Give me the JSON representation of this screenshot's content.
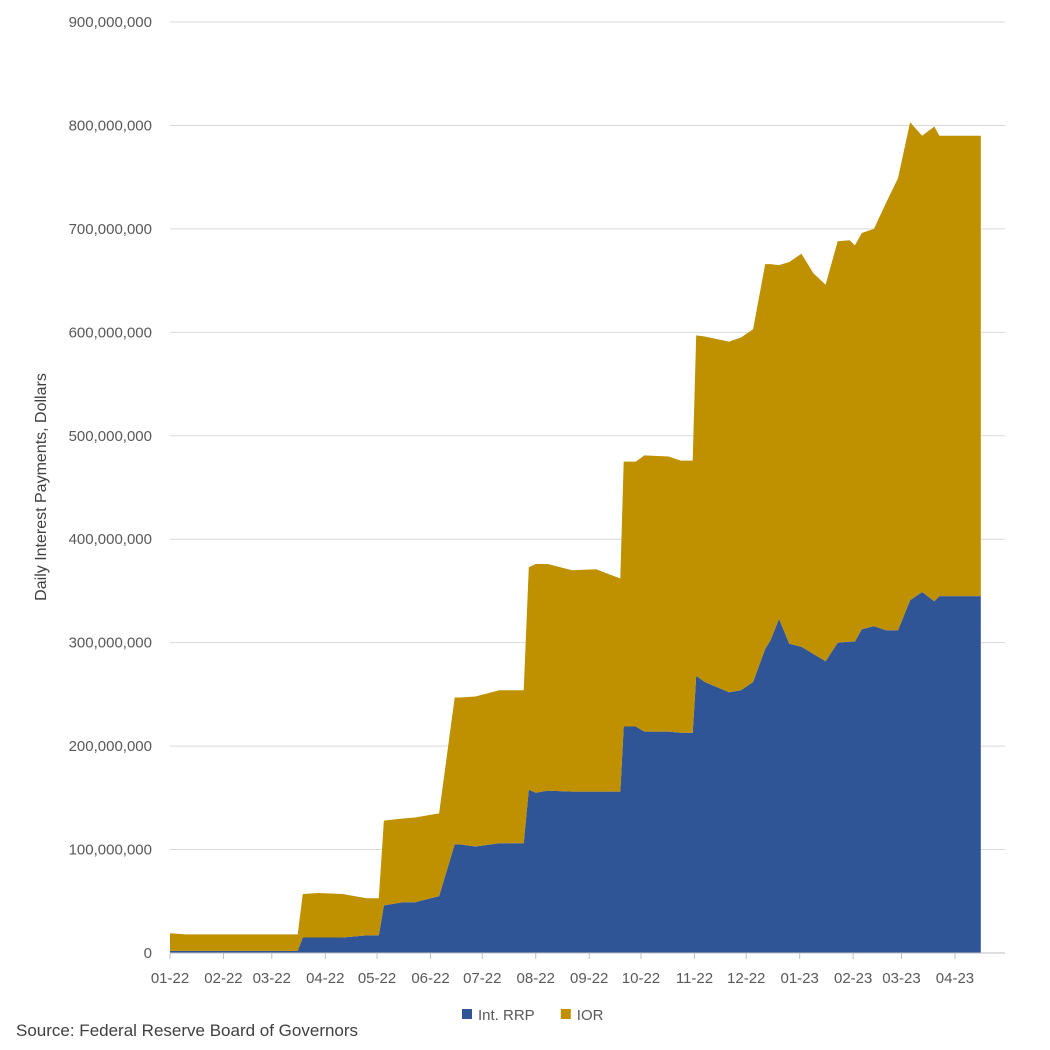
{
  "source": "Source: Federal Reserve Board of Governors",
  "chart_data": {
    "type": "area",
    "stacked": true,
    "title": "",
    "xlabel": "",
    "ylabel": "Daily Interest Payments, Dollars",
    "ylim": [
      0,
      900000000
    ],
    "yticks": [
      0,
      100000000,
      200000000,
      300000000,
      400000000,
      500000000,
      600000000,
      700000000,
      800000000,
      900000000
    ],
    "ytick_labels": [
      "0",
      "100,000,000",
      "200,000,000",
      "300,000,000",
      "400,000,000",
      "500,000,000",
      "600,000,000",
      "700,000,000",
      "800,000,000",
      "900,000,000"
    ],
    "x_tick_labels": [
      "01-22",
      "02-22",
      "03-22",
      "04-22",
      "05-22",
      "06-22",
      "07-22",
      "08-22",
      "09-22",
      "10-22",
      "11-22",
      "12-22",
      "01-23",
      "02-23",
      "03-23",
      "04-23"
    ],
    "x_start": "2022-01-01",
    "x_end": "2023-04-30",
    "grid": true,
    "legend": "bottom",
    "colors": {
      "Int. RRP": "#2f5597",
      "IOR": "#bf9000",
      "grid": "#d9d9d9",
      "axis": "#bfbfbf"
    },
    "x": [
      "2022-01-01",
      "2022-01-10",
      "2022-01-24",
      "2022-02-07",
      "2022-02-21",
      "2022-03-07",
      "2022-03-16",
      "2022-03-19",
      "2022-03-28",
      "2022-04-11",
      "2022-04-25",
      "2022-05-02",
      "2022-05-05",
      "2022-05-16",
      "2022-05-23",
      "2022-06-06",
      "2022-06-15",
      "2022-06-18",
      "2022-06-27",
      "2022-07-11",
      "2022-07-25",
      "2022-07-28",
      "2022-08-01",
      "2022-08-08",
      "2022-08-22",
      "2022-09-05",
      "2022-09-19",
      "2022-09-21",
      "2022-09-28",
      "2022-10-03",
      "2022-10-17",
      "2022-10-24",
      "2022-10-31",
      "2022-11-02",
      "2022-11-07",
      "2022-11-21",
      "2022-11-28",
      "2022-12-05",
      "2022-12-12",
      "2022-12-15",
      "2022-12-20",
      "2022-12-26",
      "2023-01-02",
      "2023-01-09",
      "2023-01-16",
      "2023-01-23",
      "2023-01-30",
      "2023-02-02",
      "2023-02-06",
      "2023-02-13",
      "2023-02-20",
      "2023-02-27",
      "2023-03-06",
      "2023-03-13",
      "2023-03-20",
      "2023-03-23",
      "2023-03-27",
      "2023-04-03",
      "2023-04-10",
      "2023-04-16"
    ],
    "series": [
      {
        "name": "Int. RRP",
        "values": [
          2000000,
          2000000,
          2000000,
          2000000,
          2000000,
          2000000,
          2000000,
          15000000,
          15000000,
          15000000,
          17000000,
          17000000,
          46000000,
          49000000,
          49000000,
          55000000,
          105000000,
          105000000,
          103000000,
          106000000,
          106000000,
          158000000,
          155000000,
          157000000,
          156000000,
          156000000,
          156000000,
          219000000,
          219000000,
          214000000,
          214000000,
          213000000,
          213000000,
          268000000,
          262000000,
          252000000,
          254000000,
          262000000,
          294000000,
          302000000,
          323000000,
          299000000,
          296000000,
          289000000,
          282000000,
          300000000,
          301000000,
          301000000,
          313000000,
          316000000,
          312000000,
          312000000,
          341000000,
          349000000,
          340000000,
          345000000,
          345000000,
          345000000,
          345000000,
          345000000
        ]
      },
      {
        "name": "IOR",
        "values": [
          17000000,
          16000000,
          16000000,
          16000000,
          16000000,
          16000000,
          16000000,
          42000000,
          43000000,
          42000000,
          36000000,
          36000000,
          82000000,
          81000000,
          82000000,
          80000000,
          142000000,
          142000000,
          145000000,
          148000000,
          148000000,
          215000000,
          221000000,
          219000000,
          214000000,
          215000000,
          206000000,
          256000000,
          256000000,
          267000000,
          266000000,
          263000000,
          263000000,
          329000000,
          334000000,
          339000000,
          341000000,
          341000000,
          372000000,
          364000000,
          342000000,
          369000000,
          380000000,
          368000000,
          364000000,
          388000000,
          388000000,
          383000000,
          383000000,
          384000000,
          413000000,
          437000000,
          462000000,
          441000000,
          459000000,
          445000000,
          445000000,
          445000000,
          445000000,
          445000000
        ]
      }
    ]
  }
}
